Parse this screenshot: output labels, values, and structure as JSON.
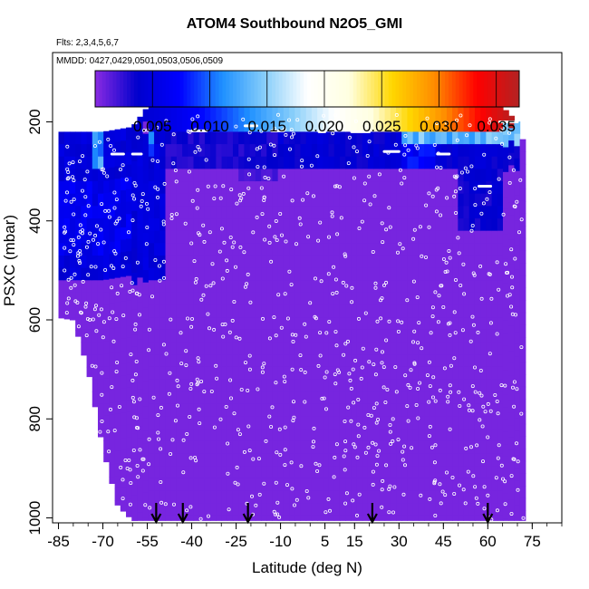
{
  "chart_data": {
    "type": "heatmap",
    "title": "ATOM4 Southbound N2O5_GMI",
    "subtitle_flights": "Flts: 2,3,4,5,6,7",
    "subtitle_dates": "MMDD: 0427,0429,0501,0503,0506,0509",
    "xlabel": "Latitude (deg N)",
    "ylabel": "PSXC (mbar)",
    "xlim": [
      -87,
      85
    ],
    "ylim": [
      1010,
      60
    ],
    "x_ticks": [
      -85,
      -70,
      -55,
      -40,
      -25,
      -10,
      5,
      15,
      30,
      45,
      60,
      75
    ],
    "x_tick_labels": [
      "-85",
      "-70",
      "-55",
      "-40",
      "-25",
      "-10",
      "5",
      "15",
      "30",
      "45",
      "60",
      "75"
    ],
    "y_ticks": [
      200,
      400,
      600,
      800,
      1000
    ],
    "y_tick_labels": [
      "200",
      "400",
      "600",
      "800",
      "1000"
    ],
    "colorbar": {
      "range": [
        0,
        0.037
      ],
      "ticks": [
        0.005,
        0.01,
        0.015,
        0.02,
        0.025,
        0.03,
        0.035
      ],
      "tick_labels": [
        "0.005",
        "0.010",
        "0.015",
        "0.020",
        "0.025",
        "0.030",
        "0.035"
      ],
      "colors": [
        "#8a2be2",
        "#0000cd",
        "#0000ff",
        "#1e90ff",
        "#87cefa",
        "#ffffff",
        "#ffffe0",
        "#ffd700",
        "#ff8c00",
        "#ff0000",
        "#b22222"
      ]
    },
    "background_value": 0.0005,
    "cell_lat_width": 1.9,
    "cell_p_height": 25,
    "data_extent": [
      {
        "lat": -85,
        "p_top": 220,
        "p_bottom": 595
      },
      {
        "lat": -80,
        "p_top": 220,
        "p_bottom": 600
      },
      {
        "lat": -75,
        "p_top": 220,
        "p_bottom": 700
      },
      {
        "lat": -70,
        "p_top": 220,
        "p_bottom": 860
      },
      {
        "lat": -65,
        "p_top": 215,
        "p_bottom": 975
      },
      {
        "lat": -60,
        "p_top": 210,
        "p_bottom": 1005
      },
      {
        "lat": -55,
        "p_top": 170,
        "p_bottom": 1005
      },
      {
        "lat": 0,
        "p_top": 170,
        "p_bottom": 1005
      },
      {
        "lat": 40,
        "p_top": 170,
        "p_bottom": 1005
      },
      {
        "lat": 65,
        "p_top": 170,
        "p_bottom": 1005
      },
      {
        "lat": 70,
        "p_top": 200,
        "p_bottom": 1005
      },
      {
        "lat": 72,
        "p_top": 240,
        "p_bottom": 1005
      }
    ],
    "features": [
      {
        "lat0": -58,
        "lat1": 69,
        "p0": 170,
        "p1": 210,
        "v0": 0.004,
        "v1": 0.037,
        "kind": "gradient"
      },
      {
        "lat0": -85,
        "lat1": -48,
        "p0": 215,
        "p1": 520,
        "v": 0.0045,
        "kind": "patch"
      },
      {
        "lat0": -85,
        "lat1": -60,
        "p0": 320,
        "p1": 460,
        "v": 0.006,
        "kind": "patch"
      },
      {
        "lat0": -74,
        "lat1": -70,
        "p0": 215,
        "p1": 285,
        "v": 0.012,
        "kind": "patch"
      },
      {
        "lat0": -55,
        "lat1": -53,
        "p0": 215,
        "p1": 265,
        "v": 0.009,
        "kind": "patch"
      },
      {
        "lat0": -48,
        "lat1": -10,
        "p0": 215,
        "p1": 295,
        "v": 0.003,
        "kind": "patch"
      },
      {
        "lat0": -10,
        "lat1": 70,
        "p0": 215,
        "p1": 290,
        "v": 0.004,
        "kind": "patch"
      },
      {
        "lat0": 30,
        "lat1": 70,
        "p0": 210,
        "p1": 240,
        "v": 0.013,
        "kind": "patch"
      },
      {
        "lat0": 30,
        "lat1": 42,
        "p0": 240,
        "p1": 295,
        "v": 0.007,
        "kind": "patch"
      },
      {
        "lat0": 50,
        "lat1": 66,
        "p0": 290,
        "p1": 410,
        "v": 0.0035,
        "kind": "patch"
      },
      {
        "lat0": 20,
        "lat1": 30,
        "p0": 250,
        "p1": 300,
        "v": 0.0025,
        "kind": "patch"
      },
      {
        "lat0": -25,
        "lat1": -10,
        "p0": 295,
        "p1": 330,
        "v": 0.0018,
        "kind": "patch"
      }
    ],
    "arrows_lat": [
      -52,
      -43,
      -21,
      21,
      60
    ],
    "plateaus": [
      {
        "lat0": -83,
        "lat1": -77,
        "p": 215
      },
      {
        "lat0": -40,
        "lat1": -35,
        "p": 218
      },
      {
        "lat0": -22,
        "lat1": -18,
        "p": 208
      },
      {
        "lat0": -13,
        "lat1": -9,
        "p": 218
      },
      {
        "lat0": 3,
        "lat1": 5,
        "p": 220
      },
      {
        "lat0": 14,
        "lat1": 20,
        "p": 220
      },
      {
        "lat0": 64,
        "lat1": 70,
        "p": 200
      },
      {
        "lat0": -60,
        "lat1": -57,
        "p": 265
      },
      {
        "lat0": -67,
        "lat1": -63,
        "p": 265
      },
      {
        "lat0": 25,
        "lat1": 30,
        "p": 260
      },
      {
        "lat0": 43,
        "lat1": 47,
        "p": 265
      },
      {
        "lat0": 57,
        "lat1": 61,
        "p": 330
      }
    ],
    "obs_point_count": 900
  }
}
